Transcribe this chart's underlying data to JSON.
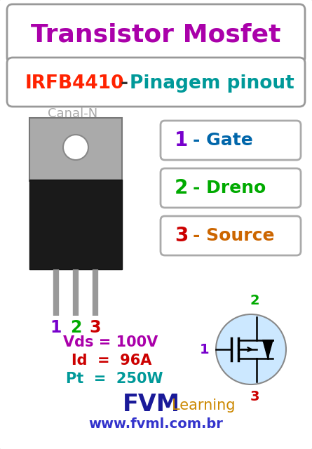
{
  "outer_bg": "#bbbbbb",
  "inner_bg": "white",
  "title1": "Transistor Mosfet",
  "title1_color": "#aa00aa",
  "title2_irfb": "IRFB4410",
  "title2_irfb_color": "#ff2200",
  "title2_pin": "Pinagem pinout",
  "title2_pin_color": "#009999",
  "title2_dash": " - ",
  "title2_dash_color": "#333333",
  "canal_n": "Canal-N",
  "canal_n_color": "#aaaaaa",
  "num1_color": "#7700cc",
  "num2_color": "#00aa00",
  "num3_color": "#cc0000",
  "pin1_text": "Gate",
  "pin1_text_color": "#0066aa",
  "pin2_text": "Dreno",
  "pin2_text_color": "#00aa00",
  "pin3_text": "Source",
  "pin3_text_color": "#cc6600",
  "box_edge": "#aaaaaa",
  "vds_label": "Vds = 100V",
  "vds_color": "#aa00aa",
  "id_label": "Id  =  96A",
  "id_color": "#cc0000",
  "pt_label": "Pt  =  250W",
  "pt_color": "#009999",
  "fvm_color": "#1a1a99",
  "learning_color": "#cc8800",
  "website": "www.fvml.com.br",
  "website_color": "#3333cc",
  "circle_fill": "#cce8ff",
  "circle_edge": "#888888",
  "mosfet_color": "black",
  "tab_color": "#aaaaaa",
  "body_color": "#1a1a1a",
  "lead_color": "#999999"
}
